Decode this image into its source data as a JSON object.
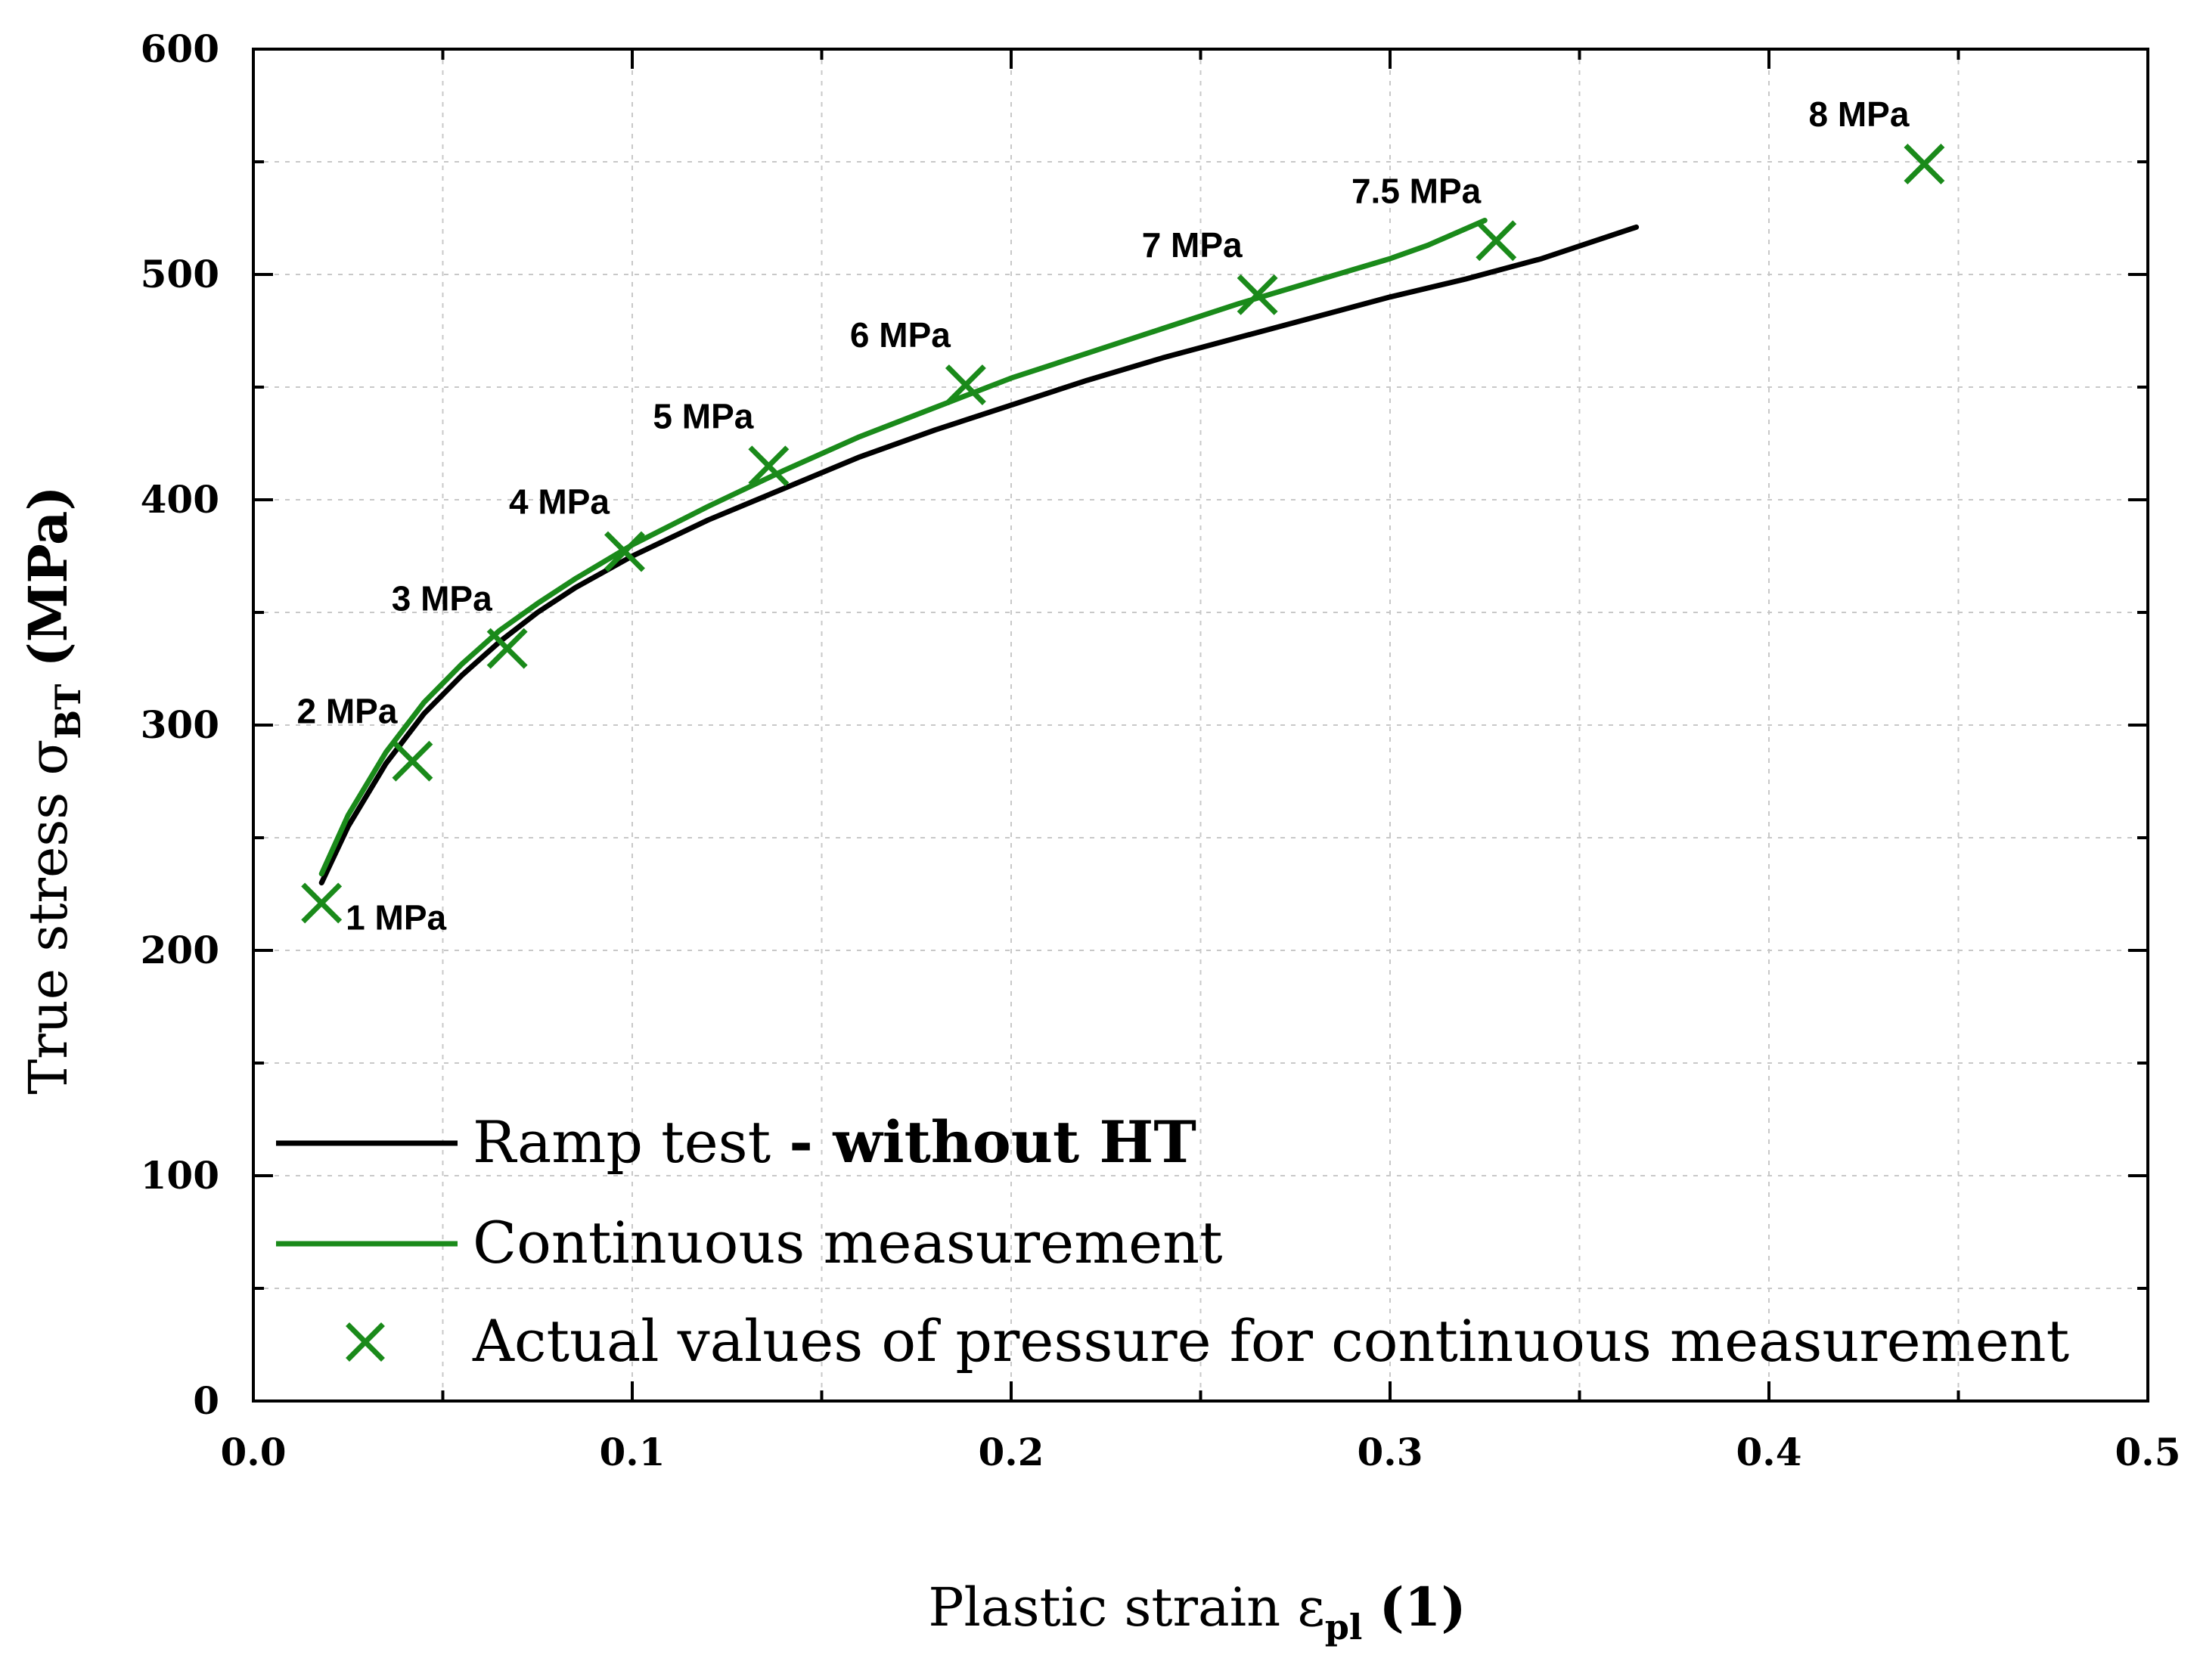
{
  "chart_data": {
    "type": "line",
    "xlabel": {
      "main": "Plastic strain ε",
      "sub": "pl",
      "unit": "(1)"
    },
    "ylabel": {
      "main": "True stress σ",
      "sub": "BT",
      "unit": "(MPa)"
    },
    "xlim": [
      0,
      0.5
    ],
    "ylim": [
      0,
      600
    ],
    "x_ticks": [
      {
        "value": 0.0,
        "label": "0.0"
      },
      {
        "value": 0.1,
        "label": "0.1"
      },
      {
        "value": 0.2,
        "label": "0.2"
      },
      {
        "value": 0.3,
        "label": "0.3"
      },
      {
        "value": 0.4,
        "label": "0.4"
      },
      {
        "value": 0.5,
        "label": "0.5"
      }
    ],
    "y_ticks": [
      {
        "value": 0,
        "label": "0"
      },
      {
        "value": 100,
        "label": "100"
      },
      {
        "value": 200,
        "label": "200"
      },
      {
        "value": 300,
        "label": "300"
      },
      {
        "value": 400,
        "label": "400"
      },
      {
        "value": 500,
        "label": "500"
      },
      {
        "value": 600,
        "label": "600"
      }
    ],
    "grid": true,
    "colors": {
      "ramp": "#000000",
      "continuous": "#1a8a1a",
      "marker": "#1a8a1a",
      "grid": "#c8c8c8"
    },
    "series": [
      {
        "name": "Ramp test - without HT",
        "label_plain": "Ramp test ",
        "label_bold": "- without HT",
        "type": "line",
        "color": "#000000",
        "points": [
          [
            0.018,
            230
          ],
          [
            0.025,
            255
          ],
          [
            0.035,
            283
          ],
          [
            0.045,
            305
          ],
          [
            0.055,
            322
          ],
          [
            0.065,
            337
          ],
          [
            0.075,
            350
          ],
          [
            0.085,
            361
          ],
          [
            0.1,
            375
          ],
          [
            0.12,
            391
          ],
          [
            0.14,
            405
          ],
          [
            0.16,
            419
          ],
          [
            0.18,
            431
          ],
          [
            0.2,
            442
          ],
          [
            0.22,
            453
          ],
          [
            0.24,
            463
          ],
          [
            0.26,
            472
          ],
          [
            0.28,
            481
          ],
          [
            0.3,
            490
          ],
          [
            0.32,
            498
          ],
          [
            0.34,
            507
          ],
          [
            0.365,
            521
          ]
        ]
      },
      {
        "name": "Continuous measurement",
        "label_plain": "Continuous measurement",
        "type": "line",
        "color": "#1a8a1a",
        "points": [
          [
            0.018,
            234
          ],
          [
            0.025,
            260
          ],
          [
            0.035,
            288
          ],
          [
            0.045,
            310
          ],
          [
            0.055,
            327
          ],
          [
            0.065,
            342
          ],
          [
            0.075,
            354
          ],
          [
            0.085,
            365
          ],
          [
            0.1,
            380
          ],
          [
            0.12,
            397
          ],
          [
            0.14,
            413
          ],
          [
            0.16,
            428
          ],
          [
            0.18,
            441
          ],
          [
            0.2,
            454
          ],
          [
            0.22,
            465
          ],
          [
            0.24,
            476
          ],
          [
            0.26,
            487
          ],
          [
            0.28,
            497
          ],
          [
            0.3,
            507
          ],
          [
            0.31,
            513
          ],
          [
            0.325,
            524
          ]
        ]
      },
      {
        "name": "Actual values of pressure for continuous measurement",
        "label_plain": "Actual values of pressure for continuous measurement",
        "type": "scatter",
        "marker": "x",
        "color": "#1a8a1a",
        "points": [
          {
            "x": 0.018,
            "y": 221,
            "label": "1 MPa",
            "label_pos": "right-below"
          },
          {
            "x": 0.042,
            "y": 284,
            "label": "2 MPa",
            "label_pos": "left-above"
          },
          {
            "x": 0.067,
            "y": 334,
            "label": "3 MPa",
            "label_pos": "left-above"
          },
          {
            "x": 0.098,
            "y": 377,
            "label": "4 MPa",
            "label_pos": "left-above"
          },
          {
            "x": 0.136,
            "y": 415,
            "label": "5 MPa",
            "label_pos": "left-above"
          },
          {
            "x": 0.188,
            "y": 451,
            "label": "6 MPa",
            "label_pos": "left-above"
          },
          {
            "x": 0.265,
            "y": 491,
            "label": "7 MPa",
            "label_pos": "left-above"
          },
          {
            "x": 0.328,
            "y": 515,
            "label": "7.5 MPa",
            "label_pos": "left-above"
          },
          {
            "x": 0.441,
            "y": 549,
            "label": "8 MPa",
            "label_pos": "left-above"
          }
        ]
      }
    ],
    "legend_placement": "bottom-left"
  }
}
